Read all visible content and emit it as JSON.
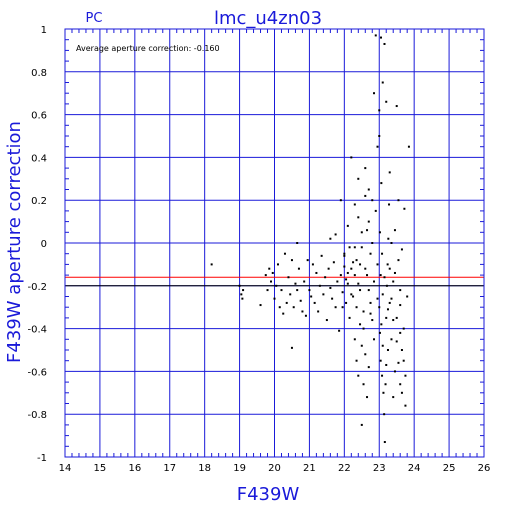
{
  "chart_data": {
    "type": "scatter",
    "title": "lmc_u4zn03",
    "subtitle": "PC",
    "annotation": "Average aperture correction: -0.160",
    "xlabel": "F439W",
    "ylabel": "F439W aperture correction",
    "xlim": [
      14,
      26
    ],
    "ylim": [
      -1,
      1
    ],
    "xticks": [
      "14",
      "15",
      "16",
      "17",
      "18",
      "19",
      "20",
      "21",
      "22",
      "23",
      "24",
      "25",
      "26"
    ],
    "yticks": [
      "-1",
      "-0.8",
      "-0.6",
      "-0.4",
      "-0.2",
      "0",
      "0.2",
      "0.4",
      "0.6",
      "0.8",
      "1"
    ],
    "grid": true,
    "hlines": [
      {
        "y": -0.16,
        "color": "#ff0000"
      },
      {
        "y": -0.2,
        "color": "#000000"
      }
    ],
    "colors": {
      "axis": "#1a1ad9",
      "grid": "#1a1ad9",
      "points": "#000000",
      "mean_line": "#ff0000"
    },
    "points": [
      [
        18.2,
        -0.1
      ],
      [
        19.0,
        -0.2
      ],
      [
        19.05,
        -0.24
      ],
      [
        19.1,
        -0.22
      ],
      [
        19.08,
        -0.26
      ],
      [
        19.6,
        -0.29
      ],
      [
        19.75,
        -0.15
      ],
      [
        19.8,
        -0.22
      ],
      [
        19.85,
        -0.12
      ],
      [
        19.9,
        -0.18
      ],
      [
        19.95,
        -0.14
      ],
      [
        20.0,
        -0.26
      ],
      [
        20.05,
        -0.2
      ],
      [
        20.1,
        -0.1
      ],
      [
        20.15,
        -0.3
      ],
      [
        20.2,
        -0.22
      ],
      [
        20.25,
        -0.33
      ],
      [
        20.3,
        -0.05
      ],
      [
        20.35,
        -0.28
      ],
      [
        20.4,
        -0.16
      ],
      [
        20.45,
        -0.24
      ],
      [
        20.5,
        -0.08
      ],
      [
        20.55,
        -0.3
      ],
      [
        20.6,
        -0.19
      ],
      [
        20.65,
        -0.22
      ],
      [
        20.7,
        -0.12
      ],
      [
        20.5,
        -0.49
      ],
      [
        20.65,
        0.0
      ],
      [
        20.75,
        -0.27
      ],
      [
        20.8,
        -0.32
      ],
      [
        20.85,
        -0.18
      ],
      [
        20.9,
        -0.34
      ],
      [
        20.95,
        -0.08
      ],
      [
        21.0,
        -0.22
      ],
      [
        21.05,
        -0.25
      ],
      [
        21.1,
        -0.1
      ],
      [
        21.15,
        -0.28
      ],
      [
        21.2,
        -0.14
      ],
      [
        21.25,
        -0.32
      ],
      [
        21.3,
        -0.2
      ],
      [
        21.35,
        -0.06
      ],
      [
        21.4,
        -0.24
      ],
      [
        21.45,
        -0.16
      ],
      [
        21.5,
        -0.36
      ],
      [
        21.55,
        -0.12
      ],
      [
        21.6,
        -0.21
      ],
      [
        21.65,
        -0.26
      ],
      [
        21.7,
        -0.09
      ],
      [
        21.75,
        -0.3
      ],
      [
        21.8,
        -0.18
      ],
      [
        21.85,
        -0.41
      ],
      [
        21.9,
        -0.15
      ],
      [
        21.95,
        -0.23
      ],
      [
        22.0,
        -0.06
      ],
      [
        22.05,
        -0.28
      ],
      [
        22.1,
        -0.19
      ],
      [
        22.15,
        -0.35
      ],
      [
        22.2,
        -0.12
      ],
      [
        22.25,
        -0.25
      ],
      [
        22.3,
        -0.02
      ],
      [
        21.6,
        0.02
      ],
      [
        21.75,
        0.04
      ],
      [
        21.9,
        0.2
      ],
      [
        22.0,
        -0.05
      ],
      [
        22.1,
        0.08
      ],
      [
        22.2,
        0.4
      ],
      [
        22.3,
        0.18
      ],
      [
        22.35,
        -0.3
      ],
      [
        22.4,
        0.12
      ],
      [
        22.45,
        -0.22
      ],
      [
        22.5,
        0.05
      ],
      [
        22.55,
        -0.4
      ],
      [
        22.6,
        0.22
      ],
      [
        22.65,
        -0.15
      ],
      [
        22.7,
        0.1
      ],
      [
        22.75,
        -0.28
      ],
      [
        22.8,
        0.0
      ],
      [
        22.85,
        -0.45
      ],
      [
        22.9,
        0.15
      ],
      [
        22.95,
        -0.1
      ],
      [
        22.3,
        -0.45
      ],
      [
        22.35,
        -0.55
      ],
      [
        22.4,
        -0.62
      ],
      [
        22.45,
        -0.38
      ],
      [
        22.5,
        -0.48
      ],
      [
        22.55,
        -0.66
      ],
      [
        22.6,
        -0.52
      ],
      [
        22.65,
        -0.72
      ],
      [
        22.7,
        -0.58
      ],
      [
        22.75,
        -0.33
      ],
      [
        22.4,
        0.3
      ],
      [
        22.5,
        -0.85
      ],
      [
        22.6,
        0.35
      ],
      [
        22.7,
        0.25
      ],
      [
        22.8,
        0.2
      ],
      [
        22.85,
        0.7
      ],
      [
        22.9,
        0.97
      ],
      [
        22.95,
        0.45
      ],
      [
        23.0,
        0.62
      ],
      [
        23.05,
        0.96
      ],
      [
        23.1,
        0.75
      ],
      [
        23.15,
        0.93
      ],
      [
        23.0,
        -0.3
      ],
      [
        23.02,
        -0.42
      ],
      [
        23.04,
        -0.55
      ],
      [
        23.06,
        -0.38
      ],
      [
        23.08,
        -0.62
      ],
      [
        23.1,
        -0.48
      ],
      [
        23.12,
        -0.7
      ],
      [
        23.14,
        -0.8
      ],
      [
        23.16,
        -0.93
      ],
      [
        23.18,
        -0.66
      ],
      [
        23.2,
        -0.35
      ],
      [
        23.22,
        -0.2
      ],
      [
        23.24,
        -0.1
      ],
      [
        23.26,
        0.02
      ],
      [
        23.28,
        0.18
      ],
      [
        23.3,
        0.33
      ],
      [
        23.0,
        0.5
      ],
      [
        23.02,
        0.05
      ],
      [
        23.04,
        -0.15
      ],
      [
        23.06,
        0.28
      ],
      [
        23.08,
        -0.05
      ],
      [
        23.3,
        -0.28
      ],
      [
        23.35,
        -0.45
      ],
      [
        23.4,
        -0.18
      ],
      [
        23.45,
        -0.6
      ],
      [
        23.5,
        -0.35
      ],
      [
        23.55,
        0.2
      ],
      [
        23.6,
        -0.22
      ],
      [
        23.65,
        -0.5
      ],
      [
        23.7,
        -0.4
      ],
      [
        23.72,
        0.16
      ],
      [
        23.75,
        -0.76
      ],
      [
        23.8,
        -0.25
      ],
      [
        23.85,
        0.45
      ],
      [
        23.5,
        0.64
      ],
      [
        23.55,
        -0.08
      ],
      [
        23.6,
        -0.66
      ],
      [
        23.2,
        0.66
      ],
      [
        23.25,
        -0.5
      ],
      [
        23.35,
        0.0
      ],
      [
        23.4,
        -0.72
      ],
      [
        23.45,
        0.06
      ],
      [
        23.3,
        -0.12
      ],
      [
        22.95,
        -0.26
      ],
      [
        22.85,
        -0.18
      ],
      [
        22.8,
        -0.36
      ],
      [
        22.75,
        -0.05
      ],
      [
        22.7,
        -0.22
      ],
      [
        22.65,
        0.06
      ],
      [
        22.6,
        -0.12
      ],
      [
        22.55,
        -0.32
      ],
      [
        22.5,
        -0.02
      ],
      [
        22.45,
        -0.1
      ],
      [
        22.4,
        -0.19
      ],
      [
        22.35,
        -0.08
      ],
      [
        22.3,
        -0.15
      ],
      [
        22.25,
        -0.09
      ],
      [
        22.2,
        -0.24
      ],
      [
        22.15,
        -0.02
      ],
      [
        22.1,
        -0.14
      ],
      [
        22.05,
        -0.17
      ],
      [
        22.0,
        -0.11
      ],
      [
        21.95,
        -0.3
      ],
      [
        23.1,
        -0.24
      ],
      [
        23.15,
        -0.16
      ],
      [
        23.2,
        -0.57
      ],
      [
        23.25,
        -0.31
      ],
      [
        23.35,
        -0.26
      ],
      [
        23.45,
        -0.14
      ],
      [
        23.5,
        -0.46
      ],
      [
        23.6,
        -0.29
      ],
      [
        23.65,
        -0.03
      ],
      [
        23.7,
        -0.55
      ],
      [
        23.75,
        -0.62
      ],
      [
        23.6,
        -0.42
      ],
      [
        23.65,
        -0.7
      ],
      [
        23.55,
        -0.56
      ],
      [
        23.4,
        -0.36
      ]
    ]
  }
}
